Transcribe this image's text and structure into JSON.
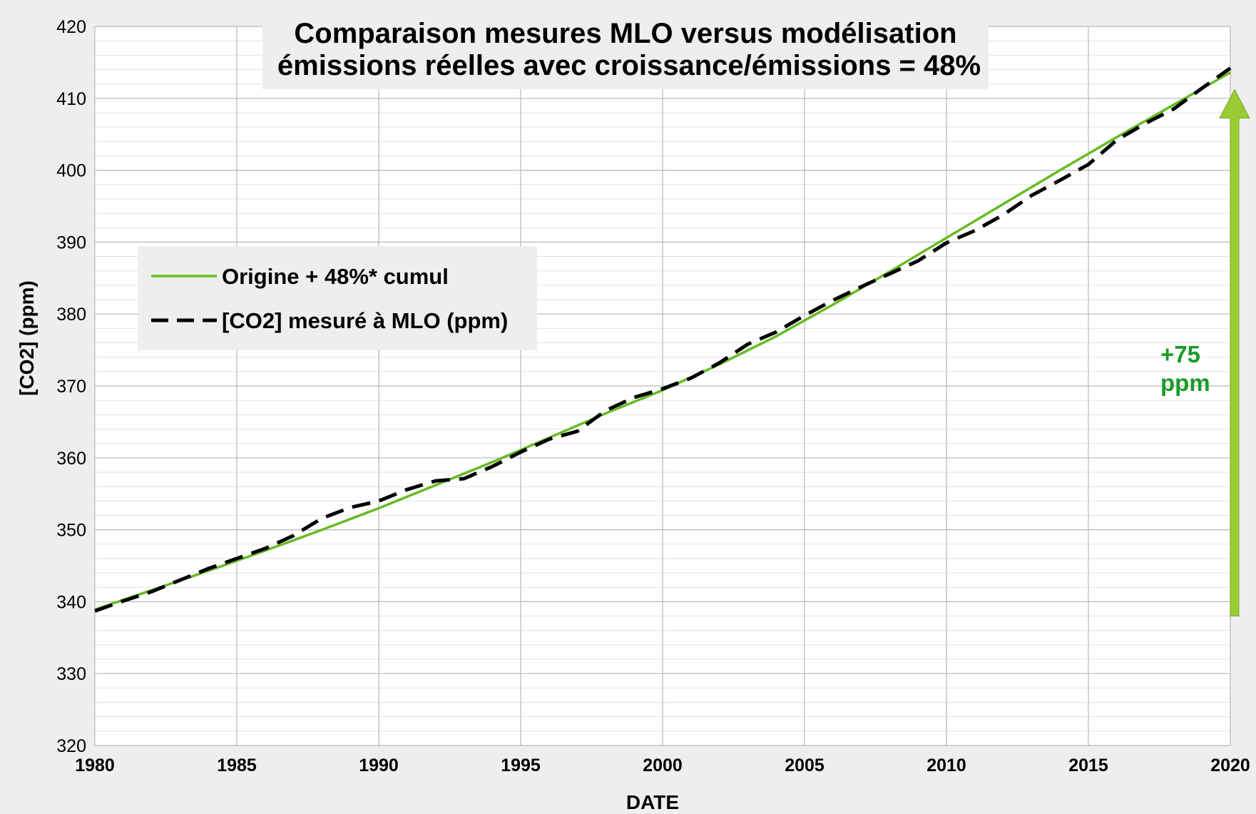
{
  "chart_data": {
    "type": "line",
    "title_line1": "Comparaison mesures MLO versus  modélisation",
    "title_line2": "émissions réelles avec croissance/émissions = 48%",
    "xlabel": "DATE",
    "ylabel": "[CO2] (ppm)",
    "xlim": [
      1980,
      2020
    ],
    "ylim": [
      320,
      420
    ],
    "x_ticks": [
      1980,
      1985,
      1990,
      1995,
      2000,
      2005,
      2010,
      2015,
      2020
    ],
    "y_ticks": [
      320,
      330,
      340,
      350,
      360,
      370,
      380,
      390,
      400,
      410,
      420
    ],
    "y_minor_step": 2,
    "grid": true,
    "legend_position": "upper-left",
    "series": [
      {
        "name": "Origine + 48%* cumul",
        "color": "#66bb22",
        "style": "solid",
        "x": [
          1980,
          1982,
          1984,
          1986,
          1988,
          1990,
          1992,
          1994,
          1996,
          1998,
          2000,
          2002,
          2004,
          2006,
          2008,
          2010,
          2012,
          2014,
          2016,
          2018,
          2020
        ],
        "y": [
          338.9,
          341.6,
          344.3,
          347.1,
          350.0,
          353.0,
          356.2,
          359.4,
          362.8,
          366.2,
          369.4,
          373.0,
          376.9,
          381.3,
          385.9,
          390.6,
          395.3,
          400.0,
          404.6,
          409.1,
          413.6
        ]
      },
      {
        "name": "[CO2] mesuré à MLO  (ppm)",
        "color": "#000000",
        "style": "dashed",
        "x": [
          1980,
          1981,
          1982,
          1983,
          1984,
          1985,
          1986,
          1987,
          1988,
          1989,
          1990,
          1991,
          1992,
          1993,
          1994,
          1995,
          1996,
          1997,
          1998,
          1999,
          2000,
          2001,
          2002,
          2003,
          2004,
          2005,
          2006,
          2007,
          2008,
          2009,
          2010,
          2011,
          2012,
          2013,
          2014,
          2015,
          2016,
          2017,
          2018,
          2019,
          2020
        ],
        "y": [
          338.7,
          340.1,
          341.4,
          343.0,
          344.6,
          346.0,
          347.4,
          349.2,
          351.6,
          353.1,
          354.0,
          355.6,
          356.8,
          357.1,
          358.8,
          360.8,
          362.6,
          363.7,
          366.6,
          368.4,
          369.6,
          371.1,
          373.2,
          375.8,
          377.5,
          379.8,
          381.9,
          383.8,
          385.6,
          387.4,
          389.9,
          391.6,
          393.8,
          396.5,
          398.6,
          400.8,
          404.2,
          406.5,
          408.5,
          411.4,
          414.2
        ]
      }
    ],
    "annotation": {
      "line1": "+75",
      "line2": "ppm",
      "color": "#1a9a2a",
      "arrow_color": "#99cc33",
      "arrow_from": 338,
      "arrow_to": 413
    }
  }
}
